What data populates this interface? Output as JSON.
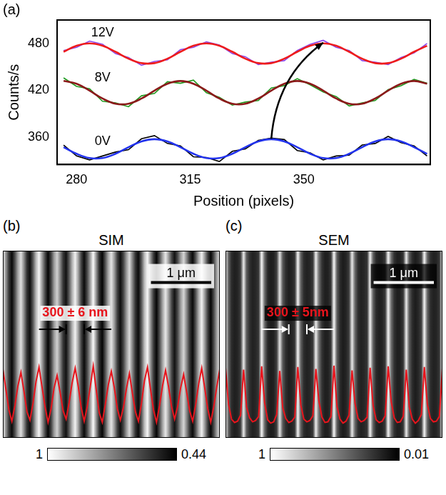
{
  "chart_data": [
    {
      "type": "line",
      "panel_label": "(a)",
      "x_label": "Position (pixels)",
      "y_label": "Counts/s",
      "x": [
        276,
        280,
        284,
        288,
        292,
        296,
        300,
        304,
        308,
        312,
        316,
        320,
        324,
        328,
        332,
        336,
        340,
        344,
        348,
        352,
        356,
        360,
        364,
        368,
        372,
        376,
        380,
        384,
        388
      ],
      "series": [
        {
          "name": "12V",
          "color": "#8a44ee",
          "line_style": "jagged",
          "values": [
            471,
            475,
            483,
            479,
            467,
            462,
            452,
            457,
            459,
            472,
            475,
            482,
            478,
            467,
            463,
            453,
            456,
            458,
            471,
            479,
            484,
            475,
            471,
            458,
            456,
            453,
            462,
            468,
            480
          ]
        },
        {
          "name": "12V",
          "color": "#ee1c1c",
          "line_style": "smooth",
          "values": [
            469.3,
            477,
            480,
            477,
            469.3,
            460.5,
            454.8,
            454.8,
            460.5,
            469.3,
            477,
            480,
            477,
            469.3,
            460.5,
            454.8,
            454.8,
            460.5,
            469.3,
            477,
            480,
            477,
            469.3,
            460.5,
            454.8,
            454.8,
            460.5,
            469.3,
            477
          ]
        },
        {
          "name": "8V",
          "color": "#1f9a1f",
          "line_style": "jagged",
          "values": [
            436,
            425,
            422,
            406,
            404,
            399,
            413,
            416,
            431,
            429,
            433,
            417,
            411,
            401,
            405,
            407,
            423,
            426,
            435,
            427,
            418,
            412,
            400,
            404,
            407,
            421,
            426,
            434,
            429
          ]
        },
        {
          "name": "8V",
          "color": "#8b1a1a",
          "line_style": "smooth",
          "values": [
            432,
            428.5,
            419.6,
            409.5,
            402.9,
            402.9,
            409.5,
            419.6,
            428.5,
            432,
            428.5,
            419.6,
            409.5,
            402.9,
            402.9,
            409.5,
            419.6,
            428.5,
            432,
            428.5,
            419.6,
            409.5,
            402.9,
            402.9,
            409.5,
            419.6,
            428.5,
            432,
            428.5
          ]
        },
        {
          "name": "0V",
          "color": "#000000",
          "line_style": "jagged",
          "values": [
            350,
            336,
            331,
            336,
            341,
            344,
            358,
            362,
            352,
            349,
            335,
            334,
            329,
            342,
            345,
            356,
            359,
            357,
            343,
            340,
            331,
            336,
            337,
            350,
            352,
            361,
            353,
            349,
            336
          ]
        },
        {
          "name": "0V",
          "color": "#2233ee",
          "line_style": "smooth",
          "values": [
            347.2,
            338.8,
            333.3,
            333.3,
            338.8,
            347.2,
            354.6,
            357.5,
            354.6,
            347.2,
            338.8,
            333.3,
            333.3,
            338.8,
            347.2,
            354.6,
            357.5,
            354.6,
            347.2,
            338.8,
            333.3,
            333.3,
            338.8,
            347.2,
            354.6,
            357.5,
            354.6,
            347.2,
            338.8
          ]
        }
      ],
      "arrow": {
        "from": [
          340,
          358
        ],
        "to": [
          356,
          481
        ]
      },
      "xlim": [
        274,
        389
      ],
      "xticks": [
        280,
        315,
        350
      ],
      "ylim": [
        325,
        510
      ],
      "yticks": [
        360,
        420,
        480
      ],
      "grid": false,
      "legend": false
    },
    {
      "type": "line",
      "panel_label": "(b)",
      "title": "SIM",
      "x": [
        0,
        50,
        100,
        150,
        200,
        250,
        300,
        350,
        400,
        450,
        500,
        550,
        600,
        650,
        700,
        750,
        800,
        850,
        900,
        950,
        1000,
        1050,
        1100,
        1150,
        1200,
        1250,
        1300,
        1350,
        1400,
        1450,
        1500,
        1550,
        1600,
        1650,
        1700,
        1750,
        1800,
        1850,
        1900,
        1950,
        2000,
        2050,
        2100,
        2150,
        2200,
        2250,
        2300,
        2350,
        2400,
        2450,
        2500,
        2550,
        2600,
        2650,
        2700,
        2750,
        2800,
        2850,
        2900,
        2950,
        3000,
        3050,
        3100,
        3150,
        3200,
        3250,
        3300,
        3350,
        3400,
        3450,
        3500,
        3550,
        3600
      ],
      "values": [
        0.96,
        0.77,
        0.57,
        0.46,
        0.61,
        0.8,
        0.93,
        0.75,
        0.55,
        0.47,
        0.63,
        0.84,
        0.98,
        0.79,
        0.6,
        0.45,
        0.58,
        0.78,
        0.9,
        0.74,
        0.56,
        0.48,
        0.64,
        0.83,
        0.97,
        0.8,
        0.59,
        0.46,
        0.6,
        0.79,
        0.99,
        0.76,
        0.54,
        0.45,
        0.62,
        0.81,
        0.94,
        0.78,
        0.58,
        0.47,
        0.59,
        0.77,
        0.92,
        0.73,
        0.55,
        0.46,
        0.63,
        0.85,
        0.98,
        0.77,
        0.57,
        0.45,
        0.61,
        0.8,
        0.95,
        0.79,
        0.6,
        0.48,
        0.6,
        0.78,
        0.91,
        0.74,
        0.56,
        0.46,
        0.62,
        0.82,
        0.97,
        0.78,
        0.58,
        0.45,
        0.6,
        0.79,
        0.96
      ],
      "color": "#e8141c",
      "xlim": [
        0,
        3600
      ],
      "ylim": [
        0.3,
        2.1
      ],
      "tick_labels": false,
      "grid": false,
      "legend": false,
      "colorbar": {
        "range": [
          0.44,
          1
        ],
        "ticks": [
          1,
          0.44
        ]
      },
      "scale_bar": {
        "label": "1 μm",
        "length": 1000
      },
      "annotations": [
        {
          "text": "300 ± 6 nm",
          "from": 1050,
          "to": 1350
        }
      ]
    },
    {
      "type": "line",
      "panel_label": "(c)",
      "title": "SEM",
      "x": [
        0,
        50,
        100,
        150,
        200,
        250,
        300,
        350,
        400,
        450,
        500,
        550,
        600,
        650,
        700,
        750,
        800,
        850,
        900,
        950,
        1000,
        1050,
        1100,
        1150,
        1200,
        1250,
        1300,
        1350,
        1400,
        1450,
        1500,
        1550,
        1600,
        1650,
        1700,
        1750,
        1800,
        1850,
        1900,
        1950,
        2000,
        2050,
        2100,
        2150,
        2200,
        2250,
        2300,
        2350,
        2400,
        2450,
        2500,
        2550,
        2600,
        2650,
        2700,
        2750,
        2800,
        2850,
        2900,
        2950,
        3000,
        3050,
        3100,
        3150,
        3200,
        3250,
        3300,
        3350,
        3400,
        3450,
        3500,
        3550,
        3600
      ],
      "values": [
        0.95,
        0.4,
        0.18,
        0.13,
        0.15,
        0.24,
        0.92,
        0.36,
        0.2,
        0.14,
        0.16,
        0.22,
        0.97,
        0.42,
        0.17,
        0.12,
        0.14,
        0.25,
        0.9,
        0.35,
        0.19,
        0.13,
        0.15,
        0.21,
        0.96,
        0.39,
        0.18,
        0.14,
        0.16,
        0.23,
        0.93,
        0.45,
        0.21,
        0.13,
        0.14,
        0.22,
        0.98,
        0.37,
        0.18,
        0.12,
        0.15,
        0.24,
        0.91,
        0.41,
        0.19,
        0.14,
        0.16,
        0.21,
        0.95,
        0.38,
        0.17,
        0.13,
        0.15,
        0.23,
        0.97,
        0.44,
        0.2,
        0.13,
        0.14,
        0.22,
        0.92,
        0.36,
        0.18,
        0.12,
        0.16,
        0.25,
        0.96,
        0.4,
        0.19,
        0.14,
        0.15,
        0.22,
        0.94
      ],
      "color": "#e8141c",
      "xlim": [
        0,
        3600
      ],
      "ylim": [
        -0.1,
        2.7
      ],
      "tick_labels": false,
      "grid": false,
      "legend": false,
      "colorbar": {
        "range": [
          0.01,
          1
        ],
        "ticks": [
          1,
          0.01
        ]
      },
      "scale_bar": {
        "label": "1 μm",
        "length": 1000
      },
      "annotations": [
        {
          "text": "300 ± 5nm",
          "from": 1050,
          "to": 1350
        }
      ]
    }
  ]
}
